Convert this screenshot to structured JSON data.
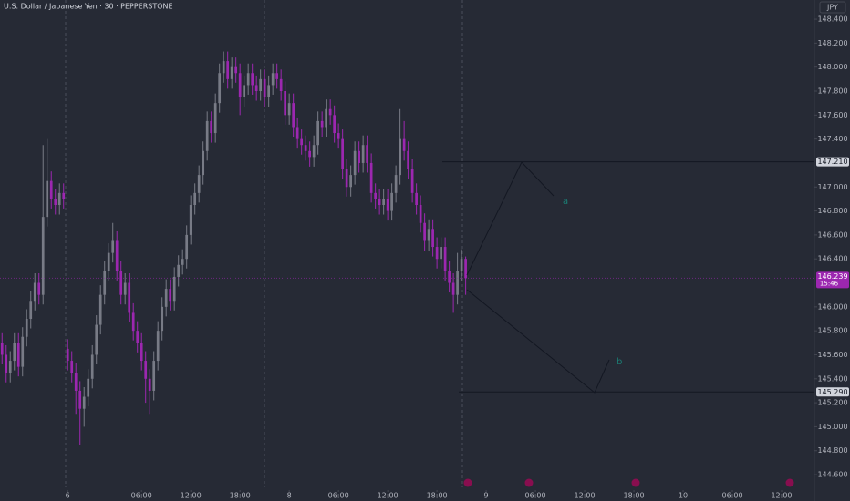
{
  "chart_data": {
    "type": "candlestick",
    "title": "U.S. Dollar / Japanese Yen · 30 · PEPPERSTONE",
    "currency": "JPY",
    "up_color": "#787b86",
    "down_color": "#9c27b0",
    "grid": false,
    "xlim": [
      -0.5,
      198
    ],
    "ylim": [
      144.38,
      148.56
    ],
    "xticks": [
      {
        "value": 16,
        "label": "6"
      },
      {
        "value": 34,
        "label": "06:00"
      },
      {
        "value": 46,
        "label": "12:00"
      },
      {
        "value": 58,
        "label": "18:00"
      },
      {
        "value": 70,
        "label": "8"
      },
      {
        "value": 82,
        "label": "06:00"
      },
      {
        "value": 94,
        "label": "12:00"
      },
      {
        "value": 106,
        "label": "18:00"
      },
      {
        "value": 118,
        "label": "9"
      },
      {
        "value": 130,
        "label": "06:00"
      },
      {
        "value": 142,
        "label": "12:00"
      },
      {
        "value": 154,
        "label": "18:00"
      },
      {
        "value": 166,
        "label": "10"
      },
      {
        "value": 178,
        "label": "06:00"
      },
      {
        "value": 190,
        "label": "12:00"
      }
    ],
    "yticks": [
      {
        "value": 148.4,
        "label": "148.400"
      },
      {
        "value": 148.2,
        "label": "148.200"
      },
      {
        "value": 148.0,
        "label": "148.000"
      },
      {
        "value": 147.8,
        "label": "147.800"
      },
      {
        "value": 147.6,
        "label": "147.600"
      },
      {
        "value": 147.4,
        "label": "147.400"
      },
      {
        "value": 147.0,
        "label": "147.000"
      },
      {
        "value": 146.8,
        "label": "146.800"
      },
      {
        "value": 146.6,
        "label": "146.600"
      },
      {
        "value": 146.4,
        "label": "146.400"
      },
      {
        "value": 146.0,
        "label": "146.000"
      },
      {
        "value": 145.8,
        "label": "145.800"
      },
      {
        "value": 145.6,
        "label": "145.600"
      },
      {
        "value": 145.4,
        "label": "145.400"
      },
      {
        "value": 145.2,
        "label": "145.200"
      },
      {
        "value": 145.0,
        "label": "145.000"
      },
      {
        "value": 144.8,
        "label": "144.800"
      },
      {
        "value": 144.6,
        "label": "144.600"
      }
    ],
    "levels": [
      {
        "value": 147.21,
        "label": "147.210"
      },
      {
        "value": 145.29,
        "label": "145.290"
      }
    ],
    "last_price": 146.239,
    "countdown": "15:46",
    "annotations": [
      "a",
      "b"
    ],
    "open": [
      145.7,
      145.6,
      145.45,
      145.55,
      145.7,
      145.5,
      145.75,
      145.9,
      146.05,
      146.2,
      146.1,
      146.75,
      147.05,
      146.9,
      146.85,
      146.95,
      145.65,
      145.55,
      145.45,
      145.3,
      145.15,
      145.25,
      145.4,
      145.6,
      145.85,
      146.1,
      146.3,
      146.45,
      146.55,
      146.3,
      146.1,
      146.2,
      145.95,
      145.8,
      145.7,
      145.55,
      145.4,
      145.3,
      145.55,
      145.8,
      146.0,
      146.15,
      146.05,
      146.25,
      146.35,
      146.4,
      146.6,
      146.85,
      146.95,
      147.1,
      147.3,
      147.55,
      147.45,
      147.7,
      147.95,
      148.05,
      147.9,
      148.0,
      147.95,
      147.75,
      147.85,
      147.95,
      147.85,
      147.8,
      147.9,
      147.75,
      147.85,
      147.95,
      147.9,
      147.8,
      147.6,
      147.7,
      147.5,
      147.4,
      147.35,
      147.3,
      147.25,
      147.35,
      147.55,
      147.5,
      147.65,
      147.6,
      147.45,
      147.4,
      147.15,
      147.0,
      147.1,
      147.3,
      147.2,
      147.35,
      147.2,
      146.95,
      146.9,
      146.85,
      146.9,
      146.8,
      146.95,
      147.1,
      147.4,
      147.3,
      147.15,
      146.95,
      146.85,
      146.7,
      146.55,
      146.65,
      146.5,
      146.4,
      146.5,
      146.3,
      146.2,
      146.1,
      146.3,
      146.4
    ],
    "high": [
      145.78,
      145.68,
      145.63,
      145.78,
      145.78,
      145.83,
      145.98,
      146.13,
      146.28,
      146.28,
      147.35,
      147.4,
      147.13,
      146.98,
      147.03,
      147.03,
      145.73,
      145.63,
      145.53,
      145.38,
      145.33,
      145.48,
      145.68,
      145.93,
      146.18,
      146.38,
      146.53,
      146.7,
      146.63,
      146.38,
      146.28,
      146.28,
      146.03,
      145.88,
      145.78,
      145.63,
      145.48,
      145.63,
      145.88,
      146.08,
      146.23,
      146.23,
      146.33,
      146.43,
      146.48,
      146.68,
      146.93,
      147.03,
      147.18,
      147.38,
      147.63,
      147.63,
      147.78,
      148.03,
      148.13,
      148.13,
      148.08,
      148.08,
      148.03,
      147.93,
      148.03,
      148.03,
      147.93,
      147.98,
      147.98,
      147.93,
      148.03,
      148.03,
      147.98,
      147.88,
      147.78,
      147.78,
      147.58,
      147.48,
      147.43,
      147.38,
      147.43,
      147.63,
      147.63,
      147.73,
      147.73,
      147.68,
      147.53,
      147.48,
      147.23,
      147.18,
      147.38,
      147.38,
      147.43,
      147.43,
      147.28,
      147.03,
      146.98,
      146.98,
      146.98,
      147.03,
      147.18,
      147.65,
      147.55,
      147.38,
      147.23,
      147.03,
      146.93,
      146.78,
      146.73,
      146.73,
      146.58,
      146.58,
      146.58,
      146.38,
      146.28,
      146.45,
      146.48,
      146.42
    ],
    "low": [
      145.52,
      145.37,
      145.37,
      145.47,
      145.42,
      145.42,
      145.67,
      145.82,
      145.97,
      146.02,
      146.02,
      146.67,
      146.82,
      146.77,
      146.77,
      146.82,
      145.47,
      145.37,
      145.1,
      144.85,
      145.0,
      145.17,
      145.32,
      145.52,
      145.77,
      146.02,
      146.22,
      146.37,
      146.22,
      146.02,
      146.02,
      145.87,
      145.72,
      145.62,
      145.47,
      145.2,
      145.1,
      145.22,
      145.47,
      145.72,
      145.92,
      145.97,
      145.97,
      146.17,
      146.27,
      146.32,
      146.52,
      146.77,
      146.87,
      147.02,
      147.22,
      147.37,
      147.37,
      147.62,
      147.87,
      147.82,
      147.82,
      147.87,
      147.6,
      147.67,
      147.77,
      147.77,
      147.72,
      147.72,
      147.67,
      147.67,
      147.77,
      147.82,
      147.72,
      147.52,
      147.52,
      147.42,
      147.32,
      147.27,
      147.22,
      147.17,
      147.17,
      147.27,
      147.42,
      147.42,
      147.52,
      147.37,
      147.32,
      147.07,
      146.92,
      146.92,
      147.02,
      147.12,
      147.12,
      147.12,
      146.87,
      146.82,
      146.77,
      146.77,
      146.72,
      146.72,
      146.87,
      147.02,
      147.22,
      147.07,
      146.87,
      146.77,
      146.62,
      146.47,
      146.47,
      146.42,
      146.32,
      146.32,
      146.22,
      146.12,
      145.95,
      146.02,
      146.22,
      146.1
    ],
    "close": [
      145.6,
      145.45,
      145.55,
      145.7,
      145.5,
      145.75,
      145.9,
      146.05,
      146.2,
      146.1,
      146.75,
      147.05,
      146.9,
      146.85,
      146.95,
      146.9,
      145.55,
      145.45,
      145.3,
      145.15,
      145.25,
      145.4,
      145.6,
      145.85,
      146.1,
      146.3,
      146.45,
      146.55,
      146.3,
      146.1,
      146.2,
      145.95,
      145.8,
      145.7,
      145.55,
      145.4,
      145.3,
      145.55,
      145.8,
      146.0,
      146.15,
      146.05,
      146.25,
      146.35,
      146.4,
      146.6,
      146.85,
      146.95,
      147.1,
      147.3,
      147.55,
      147.45,
      147.7,
      147.95,
      148.05,
      147.9,
      148.0,
      147.95,
      147.75,
      147.85,
      147.95,
      147.85,
      147.8,
      147.9,
      147.75,
      147.85,
      147.95,
      147.9,
      147.8,
      147.6,
      147.7,
      147.5,
      147.4,
      147.35,
      147.3,
      147.25,
      147.35,
      147.55,
      147.5,
      147.65,
      147.6,
      147.45,
      147.4,
      147.15,
      147.0,
      147.1,
      147.3,
      147.2,
      147.35,
      147.2,
      146.95,
      146.9,
      146.85,
      146.9,
      146.8,
      146.95,
      147.1,
      147.4,
      147.3,
      147.15,
      146.95,
      146.85,
      146.7,
      146.55,
      146.65,
      146.5,
      146.4,
      146.5,
      146.3,
      146.2,
      146.1,
      146.3,
      146.4,
      146.239
    ]
  }
}
